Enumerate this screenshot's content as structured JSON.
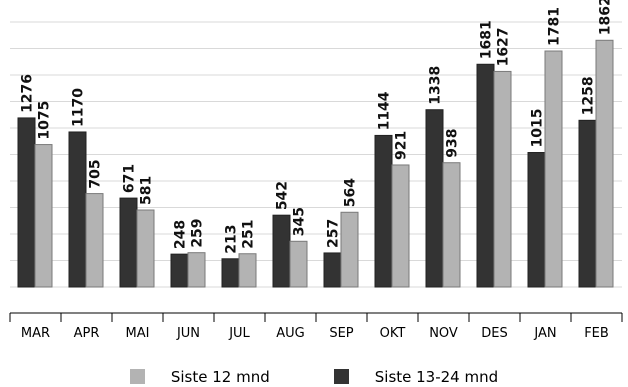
{
  "chart_data": {
    "type": "bar",
    "categories": [
      "MAR",
      "APR",
      "MAI",
      "JUN",
      "JUL",
      "AUG",
      "SEP",
      "OKT",
      "NOV",
      "DES",
      "JAN",
      "FEB"
    ],
    "series": [
      {
        "name": "Siste 13-24 mnd",
        "color": "#333333",
        "values": [
          1276,
          1170,
          671,
          248,
          213,
          542,
          257,
          1144,
          1338,
          1681,
          1015,
          1258
        ]
      },
      {
        "name": "Siste 12 mnd",
        "color": "#b3b3b3",
        "values": [
          1075,
          705,
          581,
          259,
          251,
          345,
          564,
          921,
          938,
          1627,
          1781,
          1862
        ]
      }
    ],
    "ylim": [
      0,
      2000
    ],
    "grid": true,
    "data_labels": true,
    "legend_position": "bottom-center"
  }
}
